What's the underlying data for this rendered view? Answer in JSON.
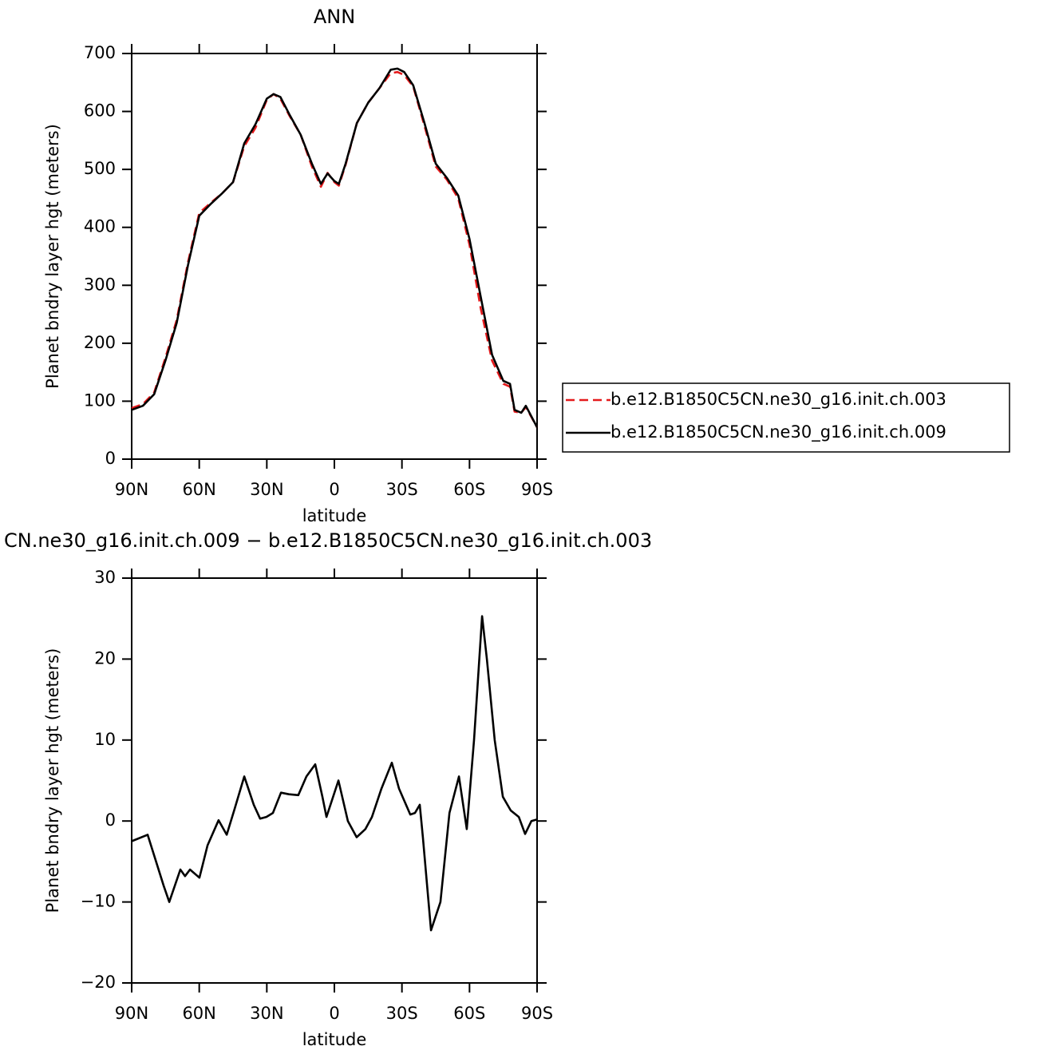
{
  "chart_data": [
    {
      "type": "line",
      "title": "ANN",
      "xlabel": "latitude",
      "ylabel": "Planet bndry layer hgt (meters)",
      "x": [
        90,
        85,
        80,
        75,
        70,
        65,
        60,
        55,
        50,
        45,
        40,
        35,
        30,
        27,
        24,
        20,
        15,
        10,
        6,
        3,
        0,
        -2,
        -5,
        -10,
        -15,
        -20,
        -25,
        -28,
        -31,
        -35,
        -40,
        -45,
        -50,
        -55,
        -60,
        -65,
        -70,
        -75,
        -78,
        -80,
        -83,
        -85,
        -90
      ],
      "series": [
        {
          "name": "b.e12.B1850C5CN.ne30_g16.init.ch.003",
          "color": "#e41a1c",
          "dash": true,
          "values": [
            88,
            95,
            115,
            175,
            240,
            340,
            425,
            442,
            458,
            478,
            540,
            572,
            620,
            630,
            622,
            593,
            560,
            505,
            470,
            494,
            478,
            472,
            508,
            580,
            615,
            640,
            666,
            668,
            663,
            643,
            575,
            505,
            482,
            450,
            370,
            260,
            170,
            130,
            125,
            82,
            80,
            90,
            55
          ]
        },
        {
          "name": "b.e12.B1850C5CN.ne30_g16.init.ch.009",
          "color": "#000000",
          "dash": false,
          "values": [
            85,
            92,
            112,
            170,
            235,
            335,
            420,
            440,
            458,
            478,
            545,
            578,
            622,
            630,
            625,
            595,
            560,
            510,
            475,
            493,
            480,
            475,
            510,
            580,
            615,
            640,
            672,
            674,
            668,
            645,
            580,
            510,
            485,
            455,
            380,
            280,
            180,
            135,
            130,
            85,
            80,
            92,
            55
          ]
        }
      ],
      "xlim": [
        90,
        -90
      ],
      "xticks": [
        {
          "value": 90,
          "label": "90N"
        },
        {
          "value": 60,
          "label": "60N"
        },
        {
          "value": 30,
          "label": "30N"
        },
        0,
        {
          "value": -30,
          "label": "30S"
        },
        {
          "value": -60,
          "label": "60S"
        },
        {
          "value": -90,
          "label": "90S"
        }
      ],
      "ylim": [
        0,
        700
      ],
      "yticks": [
        0,
        100,
        200,
        300,
        400,
        500,
        600,
        700
      ],
      "legend": "right"
    },
    {
      "type": "line",
      "title": "CN.ne30_g16.init.ch.009 − b.e12.B1850C5CN.ne30_g16.init.ch.003",
      "xlabel": "latitude",
      "ylabel": "Planet bndry layer hgt (meters)",
      "x": [
        90,
        82.9,
        75.8,
        73.3,
        68.4,
        66.3,
        64.1,
        59.9,
        56.3,
        51.4,
        47.8,
        44.3,
        40,
        35.8,
        33,
        30.2,
        27.3,
        23.7,
        20.2,
        16,
        12.4,
        8.5,
        5.3,
        3.5,
        -1.8,
        -6,
        -9.9,
        -13.8,
        -16.7,
        -20.9,
        -25.5,
        -28.7,
        -33.7,
        -35.8,
        -37.9,
        -39.3,
        -42.9,
        -47.1,
        -51.1,
        -55.3,
        -58.8,
        -62,
        -65.6,
        -67.7,
        -71.2,
        -74.8,
        -78.3,
        -81.9,
        -84.7,
        -87.5,
        -90
      ],
      "series": [
        {
          "color": "#000000",
          "dash": false,
          "values": [
            -2.5,
            -1.7,
            -8,
            -10,
            -6,
            -6.8,
            -6,
            -7,
            -3,
            0.1,
            -1.7,
            1.5,
            5.5,
            2,
            0.3,
            0.5,
            1,
            3.5,
            3.3,
            3.2,
            5.5,
            7,
            3,
            0.5,
            5,
            0,
            -2,
            -1,
            0.5,
            4,
            7.2,
            4,
            0.8,
            1,
            2,
            -2,
            -13.5,
            -10,
            1,
            5.5,
            -1,
            10,
            25.3,
            20,
            10,
            3,
            1.3,
            0.5,
            -1.6,
            0,
            0.2
          ]
        }
      ],
      "xlim": [
        90,
        -90
      ],
      "xticks": [
        {
          "value": 90,
          "label": "90N"
        },
        {
          "value": 60,
          "label": "60N"
        },
        {
          "value": 30,
          "label": "30N"
        },
        0,
        {
          "value": -30,
          "label": "30S"
        },
        {
          "value": -60,
          "label": "60S"
        },
        {
          "value": -90,
          "label": "90S"
        }
      ],
      "ylim": [
        -20,
        30
      ],
      "yticks": [
        {
          "value": -20,
          "label": "−20"
        },
        {
          "value": -10,
          "label": "−10"
        },
        0,
        10,
        20,
        30
      ]
    }
  ]
}
